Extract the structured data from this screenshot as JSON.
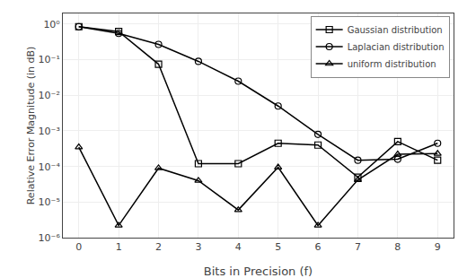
{
  "chart_data": {
    "type": "line",
    "x": [
      0,
      1,
      2,
      3,
      4,
      5,
      6,
      7,
      8,
      9
    ],
    "xlabel": "Bits in Precision (f)",
    "ylabel": "Relative Error Magnitude (in dB)",
    "series": [
      {
        "name": "Gaussian distribution",
        "color": "#000000",
        "marker": "square-open",
        "values": [
          0.85,
          0.62,
          0.075,
          0.00012,
          0.00012,
          0.00045,
          0.0004,
          5e-05,
          0.0005,
          0.00015
        ]
      },
      {
        "name": "Laplacian distribution",
        "color": "#000000",
        "marker": "circle-open",
        "values": [
          0.85,
          0.55,
          0.27,
          0.09,
          0.025,
          0.005,
          0.0008,
          0.00015,
          0.00016,
          0.00045
        ]
      },
      {
        "name": "uniform distribution",
        "color": "#000000",
        "marker": "triangle-up-open",
        "values": [
          0.00035,
          2.2e-06,
          9e-05,
          4e-05,
          6e-06,
          9.5e-05,
          2.2e-06,
          4.2e-05,
          0.00022,
          0.00023
        ]
      }
    ],
    "xlim": [
      -0.4,
      9.4
    ],
    "ylim": [
      1e-06,
      2.0
    ],
    "xticks": [
      0,
      1,
      2,
      3,
      4,
      5,
      6,
      7,
      8,
      9
    ],
    "yticks": [
      {
        "value": 1e-06,
        "label": "10⁻⁶"
      },
      {
        "value": 1e-05,
        "label": "10⁻⁵"
      },
      {
        "value": 0.0001,
        "label": "10⁻⁴"
      },
      {
        "value": 0.001,
        "label": "10⁻³"
      },
      {
        "value": 0.01,
        "label": "10⁻²"
      },
      {
        "value": 0.1,
        "label": "10⁻¹"
      },
      {
        "value": 1,
        "label": "10⁰"
      }
    ],
    "log": "y",
    "grid": true,
    "legend": "upper right"
  }
}
